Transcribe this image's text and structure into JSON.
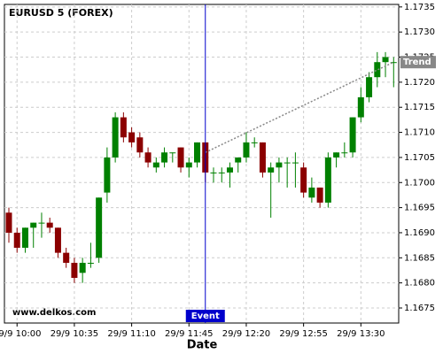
{
  "chart_data": {
    "type": "candlestick",
    "title": "EURUSD 5 (FOREX)",
    "watermark": "www.delkos.com",
    "x_label": "Date",
    "categories": [
      null,
      "29/9 10:00",
      null,
      null,
      null,
      null,
      null,
      null,
      "29/9 10:35",
      null,
      null,
      null,
      null,
      null,
      null,
      "29/9 11:10",
      null,
      null,
      null,
      null,
      null,
      null,
      "29/9 11:45",
      null,
      null,
      null,
      null,
      null,
      null,
      "29/9 12:20",
      null,
      null,
      null,
      null,
      null,
      null,
      "29/9 12:55",
      null,
      null,
      null,
      null,
      null,
      null,
      "29/9 13:30",
      null,
      null,
      null,
      null
    ],
    "open": [
      1.1694,
      1.169,
      1.1687,
      1.1691,
      1.1692,
      1.1692,
      1.1691,
      1.1686,
      1.1684,
      1.1682,
      1.1684,
      1.1685,
      1.1698,
      1.1705,
      1.1713,
      1.171,
      1.1709,
      1.1706,
      1.1703,
      1.1704,
      1.1706,
      1.1707,
      1.1703,
      1.1704,
      1.1708,
      1.1702,
      1.1702,
      1.1702,
      1.1704,
      1.1705,
      1.1708,
      1.1708,
      1.1702,
      1.1703,
      1.1704,
      1.1704,
      1.1703,
      1.1697,
      1.1699,
      1.1696,
      1.1705,
      1.1706,
      1.1706,
      1.1713,
      1.1717,
      1.1721,
      1.1724,
      1.1724
    ],
    "high": [
      1.1695,
      1.1691,
      1.1691,
      1.1692,
      1.1694,
      1.1693,
      1.1691,
      1.1687,
      1.1685,
      1.1685,
      1.1688,
      1.1697,
      1.1707,
      1.1714,
      1.1714,
      1.1711,
      1.171,
      1.1707,
      1.1705,
      1.1707,
      1.1706,
      1.1707,
      1.1705,
      1.1708,
      1.1708,
      1.1703,
      1.1703,
      1.1704,
      1.1705,
      1.171,
      1.1709,
      1.1708,
      1.1704,
      1.1705,
      1.1705,
      1.1706,
      1.1704,
      1.1701,
      1.1699,
      1.1706,
      1.1706,
      1.1708,
      1.1713,
      1.1719,
      1.1722,
      1.1726,
      1.1726,
      1.1725
    ],
    "low": [
      1.1688,
      1.1686,
      1.1686,
      1.1687,
      1.1689,
      1.169,
      1.1685,
      1.1683,
      1.168,
      1.168,
      1.1683,
      1.1684,
      1.1696,
      1.1704,
      1.1708,
      1.1707,
      1.1705,
      1.1703,
      1.1702,
      1.1703,
      1.1704,
      1.1702,
      1.1701,
      1.1703,
      1.17,
      1.17,
      1.17,
      1.1699,
      1.1702,
      1.1704,
      1.1707,
      1.1701,
      1.1693,
      1.17,
      1.1699,
      1.1699,
      1.1697,
      1.1696,
      1.1695,
      1.1695,
      1.1703,
      1.1705,
      1.1705,
      1.1712,
      1.1716,
      1.1719,
      1.1721,
      1.1719
    ],
    "close": [
      1.169,
      1.1687,
      1.1691,
      1.1692,
      1.1692,
      1.1691,
      1.1686,
      1.1684,
      1.1681,
      1.1684,
      1.1684,
      1.1697,
      1.1705,
      1.1713,
      1.1709,
      1.1708,
      1.1706,
      1.1704,
      1.1704,
      1.1706,
      1.1706,
      1.1703,
      1.1704,
      1.1708,
      1.1702,
      1.1702,
      1.1702,
      1.1703,
      1.1705,
      1.1708,
      1.1708,
      1.1702,
      1.1703,
      1.1704,
      1.1704,
      1.1704,
      1.1698,
      1.1699,
      1.1696,
      1.1705,
      1.1706,
      1.1706,
      1.1713,
      1.1717,
      1.1721,
      1.1724,
      1.1725,
      1.1724
    ],
    "up_color": "#008000",
    "down_color": "#8b0000",
    "ylim": [
      1.1672,
      1.17355
    ],
    "yticks": [
      {
        "value": 1.1675,
        "label": "1.1675"
      },
      {
        "value": 1.168,
        "label": "1.1680"
      },
      1.1685,
      {
        "value": 1.169,
        "label": "1.1690"
      },
      1.1695,
      {
        "value": 1.17,
        "label": "1.1700"
      },
      1.1705,
      {
        "value": 1.171,
        "label": "1.1710"
      },
      1.1715,
      {
        "value": 1.172,
        "label": "1.1720"
      },
      1.1725,
      {
        "value": 1.173,
        "label": "1.1730"
      },
      1.1735
    ],
    "grid": true,
    "event": {
      "label": "Event",
      "index": 24,
      "color": "#0000cc"
    },
    "trend": {
      "label": "Trend",
      "from": 24,
      "to": 47,
      "values": [
        1.1706,
        1.1724
      ],
      "color": "#888888"
    }
  }
}
